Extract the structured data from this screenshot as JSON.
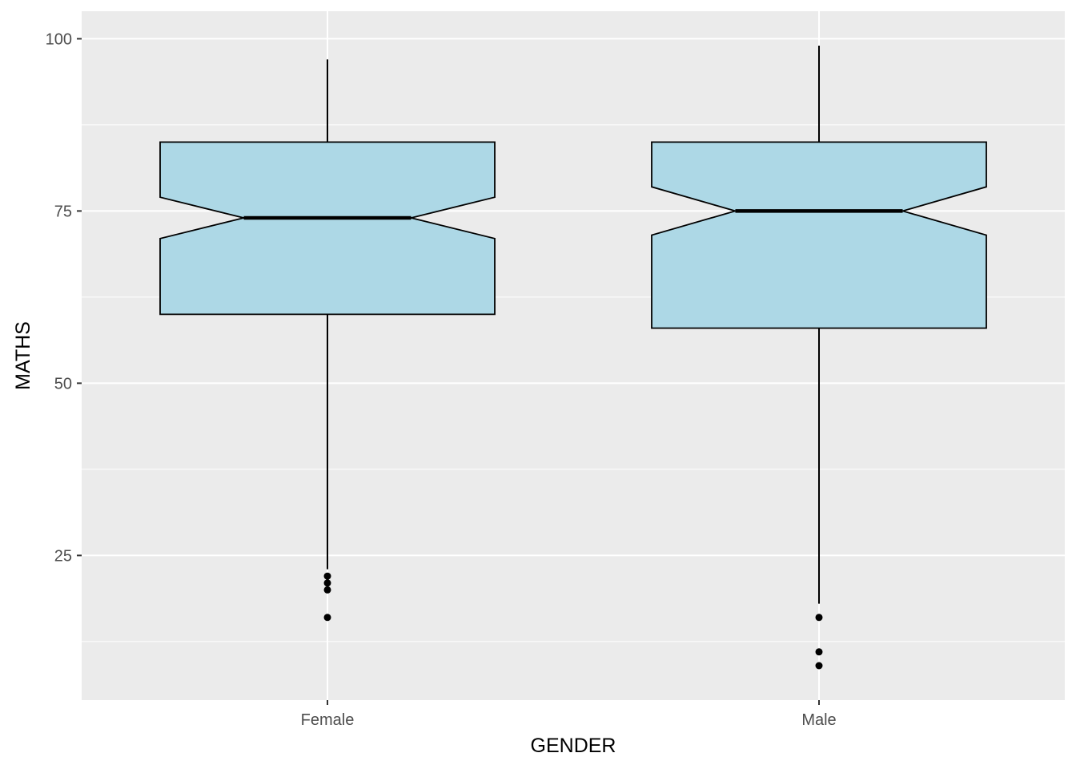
{
  "chart_data": {
    "type": "boxplot",
    "notched": true,
    "title": "",
    "xlabel": "GENDER",
    "ylabel": "MATHS",
    "ylim": [
      4,
      104
    ],
    "y_ticks": [
      25,
      50,
      75,
      100
    ],
    "y_tick_labels": [
      "25",
      "50",
      "75",
      "100"
    ],
    "y_minor_ticks": [
      12.5,
      37.5,
      62.5,
      87.5
    ],
    "grid": true,
    "fill_color": "#add8e6",
    "panel_color": "#ebebeb",
    "grid_color": "#ffffff",
    "categories": [
      "Female",
      "Male"
    ],
    "boxes": [
      {
        "name": "Female",
        "whisker_low": 23,
        "q1": 60,
        "median": 74,
        "q3": 85,
        "whisker_high": 97,
        "notch_low": 71,
        "notch_high": 77,
        "outliers": [
          16,
          20,
          21,
          22
        ]
      },
      {
        "name": "Male",
        "whisker_low": 18,
        "q1": 58,
        "median": 75,
        "q3": 85,
        "whisker_high": 99,
        "notch_low": 71.5,
        "notch_high": 78.5,
        "outliers": [
          9,
          11,
          16
        ]
      }
    ]
  }
}
